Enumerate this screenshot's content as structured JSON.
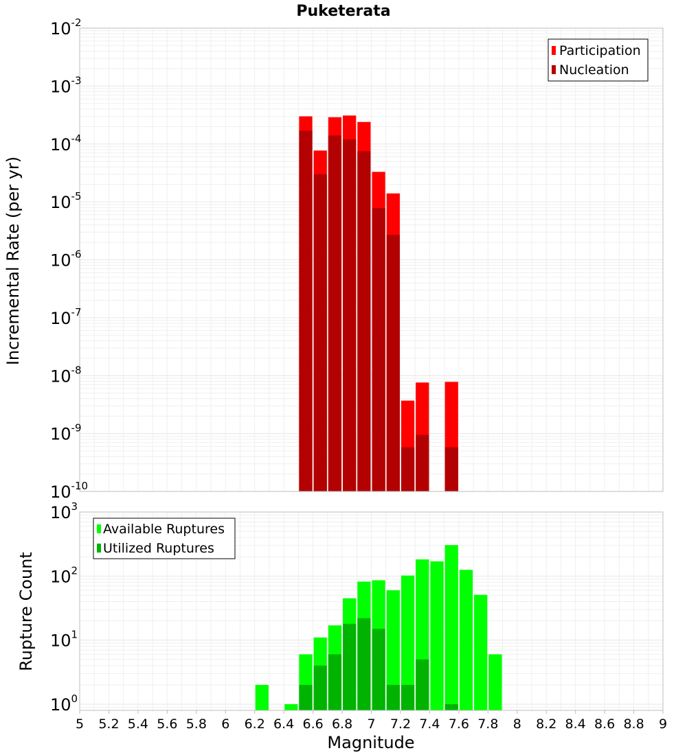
{
  "chart_data": [
    {
      "type": "bar",
      "title": "Puketerata",
      "xlabel": "Magnitude",
      "ylabel": "Incremental Rate (per yr)",
      "yscale": "log",
      "ylim": [
        1e-10,
        0.01
      ],
      "xlim": [
        5,
        9
      ],
      "bin_width": 0.1,
      "y_ticks": [
        {
          "base": "10",
          "exp": "-10",
          "value": 1e-10
        },
        {
          "base": "10",
          "exp": "-9",
          "value": 1e-09
        },
        {
          "base": "10",
          "exp": "-8",
          "value": 1e-08
        },
        {
          "base": "10",
          "exp": "-7",
          "value": 1e-07
        },
        {
          "base": "10",
          "exp": "-6",
          "value": 1e-06
        },
        {
          "base": "10",
          "exp": "-5",
          "value": 1e-05
        },
        {
          "base": "10",
          "exp": "-4",
          "value": 0.0001
        },
        {
          "base": "10",
          "exp": "-3",
          "value": 0.001
        },
        {
          "base": "10",
          "exp": "-2",
          "value": 0.01
        }
      ],
      "legend_position": "top-right",
      "series": [
        {
          "name": "Participation",
          "color": "#ff0000",
          "points": [
            {
              "x": 6.55,
              "y": 0.0003
            },
            {
              "x": 6.65,
              "y": 7.7e-05
            },
            {
              "x": 6.75,
              "y": 0.00029
            },
            {
              "x": 6.85,
              "y": 0.00031
            },
            {
              "x": 6.95,
              "y": 0.00024
            },
            {
              "x": 7.05,
              "y": 3.3e-05
            },
            {
              "x": 7.15,
              "y": 1.4e-05
            },
            {
              "x": 7.25,
              "y": 3.7e-09
            },
            {
              "x": 7.35,
              "y": 7.6e-09
            },
            {
              "x": 7.55,
              "y": 7.8e-09
            }
          ]
        },
        {
          "name": "Nucleation",
          "color": "#b30000",
          "points": [
            {
              "x": 6.55,
              "y": 0.00017
            },
            {
              "x": 6.65,
              "y": 3e-05
            },
            {
              "x": 6.75,
              "y": 0.00014
            },
            {
              "x": 6.85,
              "y": 0.00012
            },
            {
              "x": 6.95,
              "y": 7.5e-05
            },
            {
              "x": 7.05,
              "y": 7.8e-06
            },
            {
              "x": 7.15,
              "y": 2.7e-06
            },
            {
              "x": 7.25,
              "y": 5.8e-10
            },
            {
              "x": 7.35,
              "y": 9.5e-10
            },
            {
              "x": 7.55,
              "y": 5.8e-10
            }
          ]
        }
      ]
    },
    {
      "type": "bar",
      "xlabel": "Magnitude",
      "ylabel": "Rupture Count",
      "yscale": "log",
      "ylim": [
        0.8,
        1000
      ],
      "xlim": [
        5,
        9
      ],
      "bin_width": 0.1,
      "x_ticks": [
        "5",
        "5.2",
        "5.4",
        "5.6",
        "5.8",
        "6",
        "6.2",
        "6.4",
        "6.6",
        "6.8",
        "7",
        "7.2",
        "7.4",
        "7.6",
        "7.8",
        "8",
        "8.2",
        "8.4",
        "8.6",
        "8.8",
        "9"
      ],
      "y_ticks": [
        {
          "base": "10",
          "exp": "0",
          "value": 1
        },
        {
          "base": "10",
          "exp": "1",
          "value": 10
        },
        {
          "base": "10",
          "exp": "2",
          "value": 100
        },
        {
          "base": "10",
          "exp": "3",
          "value": 1000
        }
      ],
      "legend_position": "top-left",
      "series": [
        {
          "name": "Available Ruptures",
          "color": "#00ff00",
          "points": [
            {
              "x": 6.25,
              "y": 2
            },
            {
              "x": 6.45,
              "y": 1
            },
            {
              "x": 6.55,
              "y": 6
            },
            {
              "x": 6.65,
              "y": 11
            },
            {
              "x": 6.75,
              "y": 17
            },
            {
              "x": 6.85,
              "y": 45
            },
            {
              "x": 6.95,
              "y": 82
            },
            {
              "x": 7.05,
              "y": 86
            },
            {
              "x": 7.15,
              "y": 60
            },
            {
              "x": 7.25,
              "y": 102
            },
            {
              "x": 7.35,
              "y": 182
            },
            {
              "x": 7.45,
              "y": 170
            },
            {
              "x": 7.55,
              "y": 305
            },
            {
              "x": 7.65,
              "y": 125
            },
            {
              "x": 7.75,
              "y": 51
            },
            {
              "x": 7.85,
              "y": 6
            }
          ]
        },
        {
          "name": "Utilized Ruptures",
          "color": "#00b300",
          "points": [
            {
              "x": 6.55,
              "y": 2
            },
            {
              "x": 6.65,
              "y": 4
            },
            {
              "x": 6.75,
              "y": 6
            },
            {
              "x": 6.85,
              "y": 18
            },
            {
              "x": 6.95,
              "y": 22
            },
            {
              "x": 7.05,
              "y": 15
            },
            {
              "x": 7.15,
              "y": 2
            },
            {
              "x": 7.25,
              "y": 2
            },
            {
              "x": 7.35,
              "y": 5
            },
            {
              "x": 7.55,
              "y": 1
            }
          ]
        }
      ]
    }
  ]
}
